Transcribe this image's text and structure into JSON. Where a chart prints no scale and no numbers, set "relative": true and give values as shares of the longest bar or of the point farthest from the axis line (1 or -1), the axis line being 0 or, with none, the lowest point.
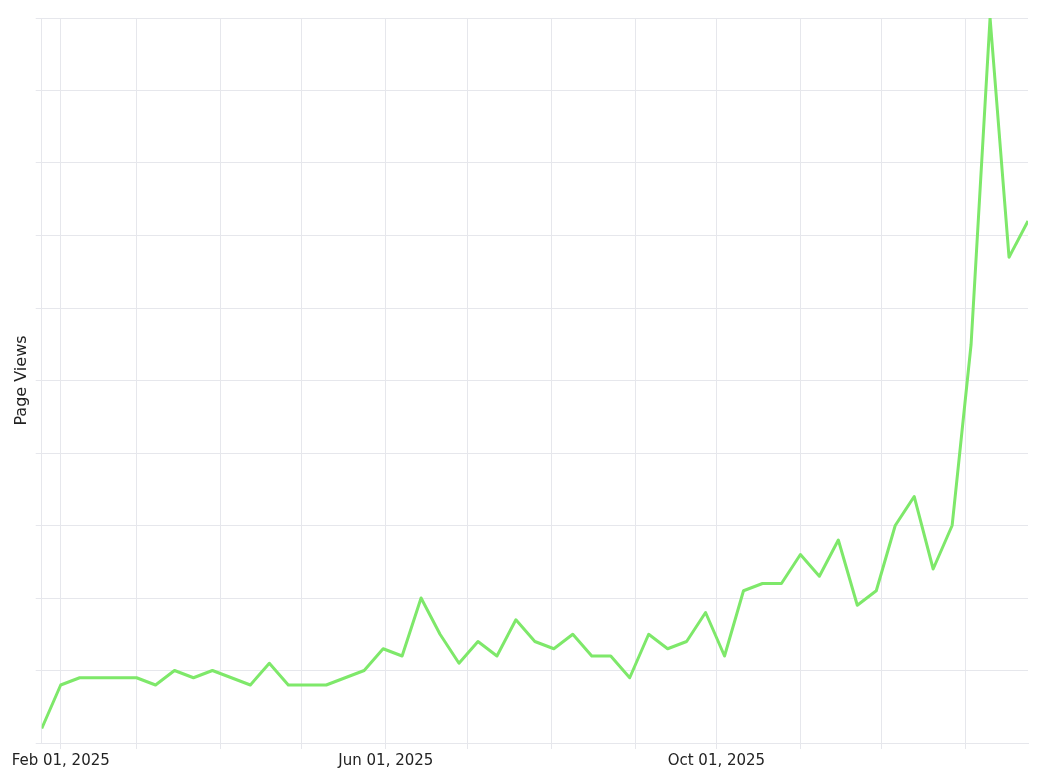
{
  "chart_data": {
    "type": "line",
    "relative": true,
    "ylabel": "Page Views",
    "grid": true,
    "legend": false,
    "marker": "none",
    "line_style": "solid",
    "x": [
      "2025-01-25",
      "2025-02-01",
      "2025-02-08",
      "2025-02-15",
      "2025-02-22",
      "2025-03-01",
      "2025-03-08",
      "2025-03-15",
      "2025-03-22",
      "2025-03-29",
      "2025-04-05",
      "2025-04-12",
      "2025-04-19",
      "2025-04-26",
      "2025-05-03",
      "2025-05-10",
      "2025-05-17",
      "2025-05-24",
      "2025-05-31",
      "2025-06-07",
      "2025-06-14",
      "2025-06-21",
      "2025-06-28",
      "2025-07-05",
      "2025-07-12",
      "2025-07-19",
      "2025-07-26",
      "2025-08-02",
      "2025-08-09",
      "2025-08-16",
      "2025-08-23",
      "2025-08-30",
      "2025-09-06",
      "2025-09-13",
      "2025-09-20",
      "2025-09-27",
      "2025-10-04",
      "2025-10-11",
      "2025-10-18",
      "2025-10-25",
      "2025-11-01",
      "2025-11-08",
      "2025-11-15",
      "2025-11-22",
      "2025-11-29",
      "2025-12-06",
      "2025-12-13",
      "2025-12-20",
      "2025-12-27",
      "2026-01-03",
      "2026-01-10",
      "2026-01-17",
      "2026-01-24"
    ],
    "series": [
      {
        "color": "#7ee86a",
        "values": [
          0.02,
          0.08,
          0.09,
          0.09,
          0.09,
          0.09,
          0.08,
          0.1,
          0.09,
          0.1,
          0.09,
          0.08,
          0.11,
          0.08,
          0.08,
          0.08,
          0.09,
          0.1,
          0.13,
          0.12,
          0.2,
          0.15,
          0.11,
          0.14,
          0.12,
          0.17,
          0.14,
          0.13,
          0.15,
          0.12,
          0.12,
          0.09,
          0.15,
          0.13,
          0.14,
          0.18,
          0.12,
          0.21,
          0.22,
          0.22,
          0.26,
          0.23,
          0.28,
          0.19,
          0.21,
          0.3,
          0.34,
          0.24,
          0.3,
          0.55,
          1,
          0.67,
          0.72
        ]
      }
    ],
    "xlim": [
      "2025-01-25",
      "2026-01-24"
    ],
    "xticks": [
      {
        "value": "2025-02-01",
        "label": "Feb 01, 2025"
      },
      {
        "value": "2025-03-01",
        "label": null
      },
      {
        "value": "2025-04-01",
        "label": null
      },
      {
        "value": "2025-05-01",
        "label": null
      },
      {
        "value": "2025-06-01",
        "label": "Jun 01, 2025"
      },
      {
        "value": "2025-07-01",
        "label": null
      },
      {
        "value": "2025-08-01",
        "label": null
      },
      {
        "value": "2025-09-01",
        "label": null
      },
      {
        "value": "2025-10-01",
        "label": "Oct 01, 2025"
      },
      {
        "value": "2025-11-01",
        "label": null
      },
      {
        "value": "2025-12-01",
        "label": null
      },
      {
        "value": "2026-01-01",
        "label": null
      }
    ]
  }
}
